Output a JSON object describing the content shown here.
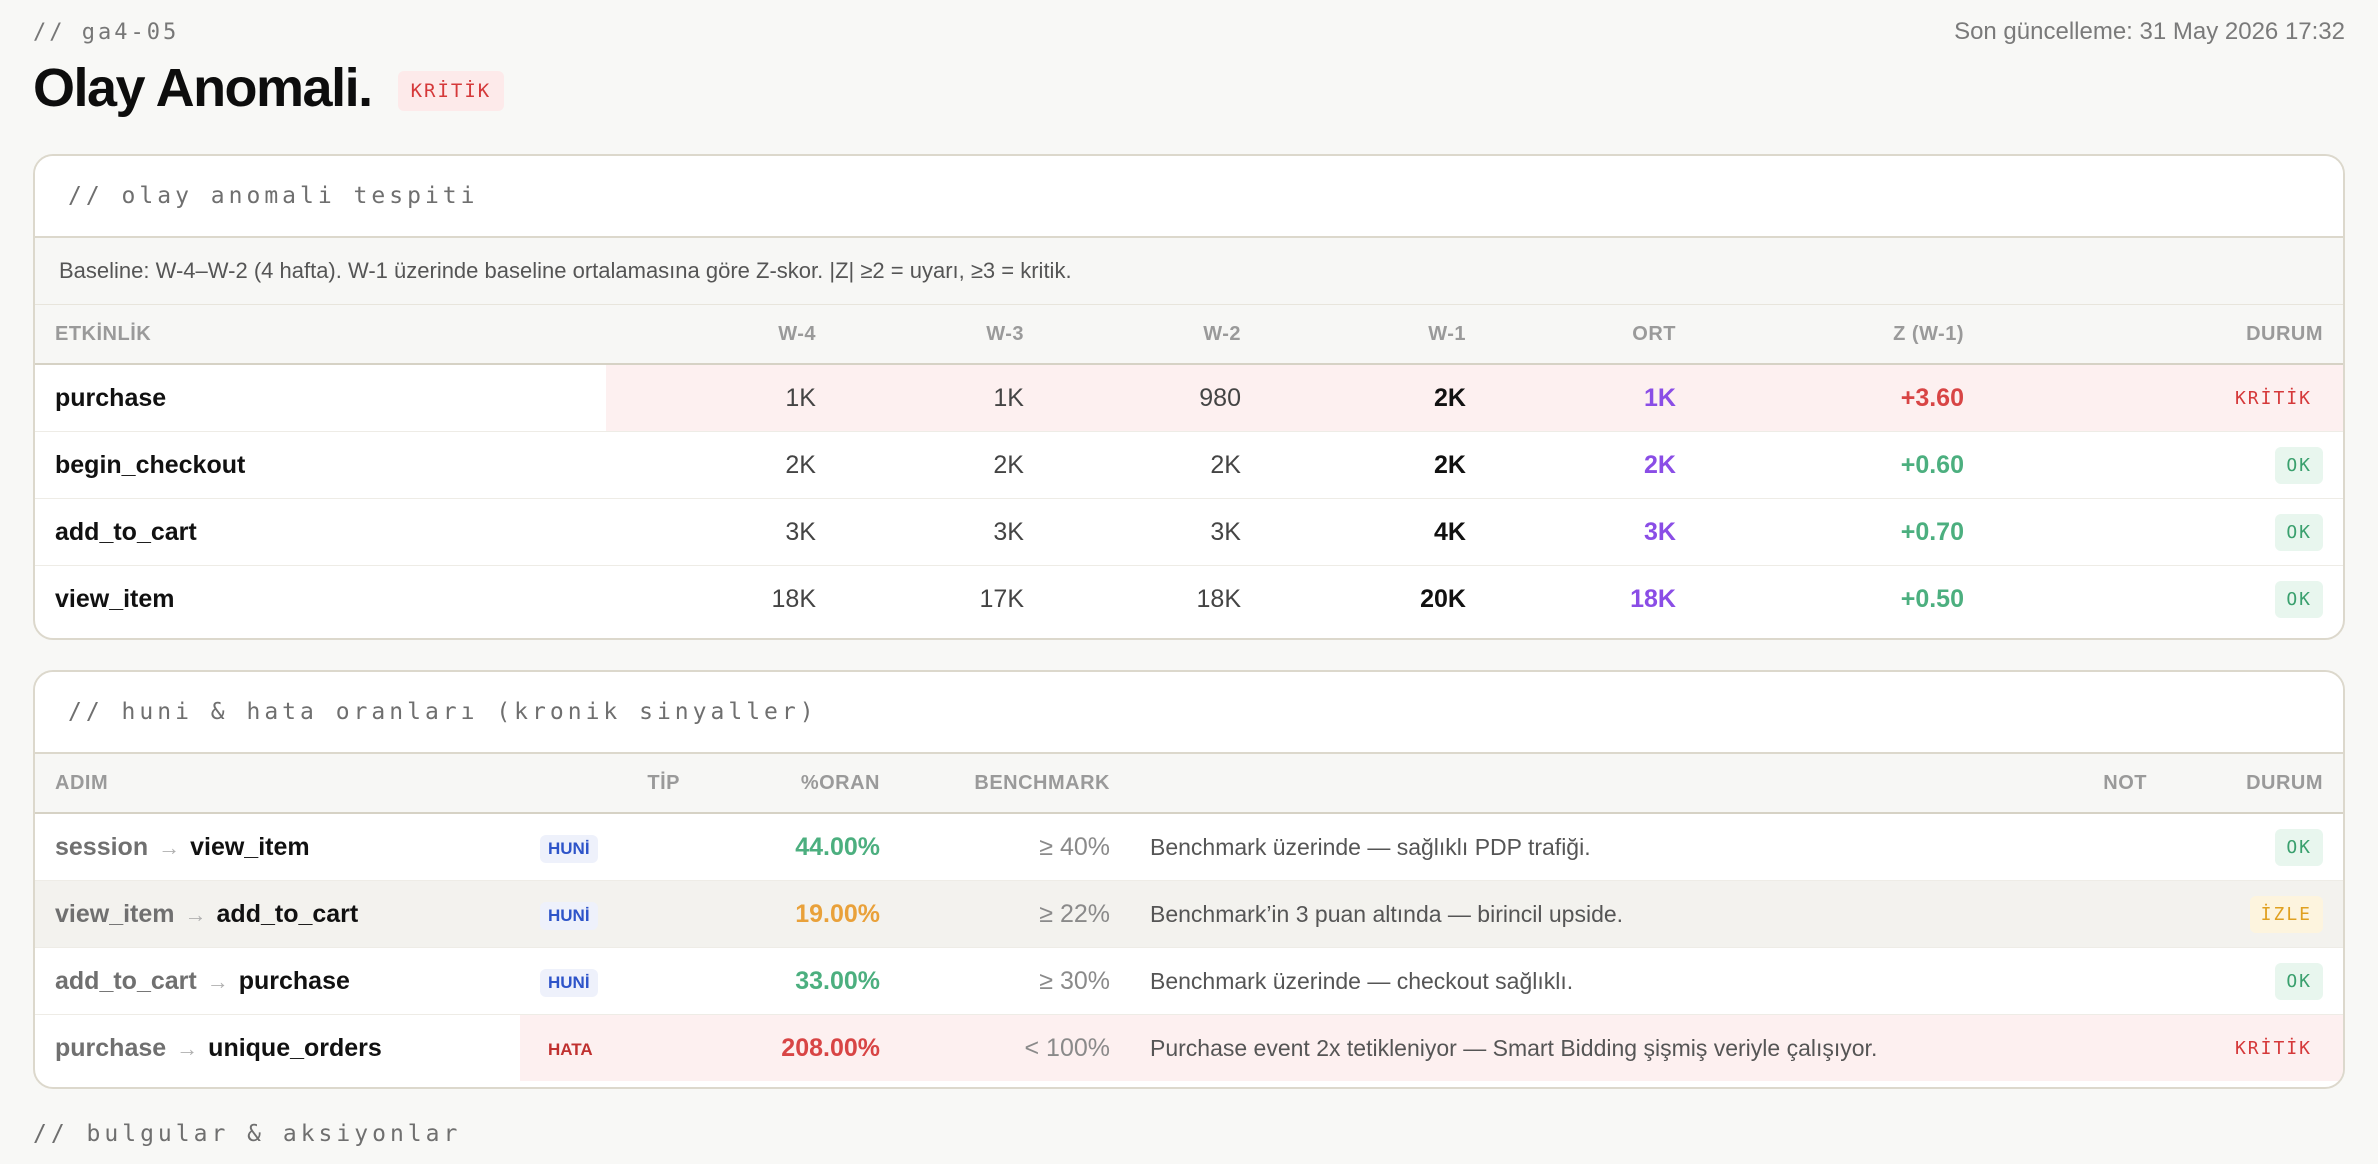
{
  "header": {
    "crumb": "// ga4-05",
    "updated": "Son güncelleme: 31 May 2026 17:32",
    "title": "Olay Anomali.",
    "badge": "KRİTİK"
  },
  "anomaly": {
    "section_title": "// olay anomali tespiti",
    "note": "Baseline: W-4–W-2 (4 hafta). W-1 üzerinde baseline ortalamasına göre Z-skor. |Z| ≥2 = uyarı, ≥3 = kritik.",
    "columns": [
      "ETKİNLİK",
      "W-4",
      "W-3",
      "W-2",
      "W-1",
      "ORT",
      "Z (W-1)",
      "DURUM"
    ],
    "rows": [
      {
        "event": "purchase",
        "w4": "1K",
        "w3": "1K",
        "w2": "980",
        "w1": "2K",
        "avg": "1K",
        "z": "+3.60",
        "status": "KRİTİK"
      },
      {
        "event": "begin_checkout",
        "w4": "2K",
        "w3": "2K",
        "w2": "2K",
        "w1": "2K",
        "avg": "2K",
        "z": "+0.60",
        "status": "OK"
      },
      {
        "event": "add_to_cart",
        "w4": "3K",
        "w3": "3K",
        "w2": "3K",
        "w1": "4K",
        "avg": "3K",
        "z": "+0.70",
        "status": "OK"
      },
      {
        "event": "view_item",
        "w4": "18K",
        "w3": "17K",
        "w2": "18K",
        "w1": "20K",
        "avg": "18K",
        "z": "+0.50",
        "status": "OK"
      }
    ]
  },
  "funnel": {
    "section_title": "// huni & hata oranları (kronik sinyaller)",
    "columns": [
      "ADIM",
      "TİP",
      "%ORAN",
      "BENCHMARK",
      "NOT",
      "DURUM"
    ],
    "rows": [
      {
        "from": "session",
        "to": "view_item",
        "type": "HUNİ",
        "rate": "44.00%",
        "bench": "≥ 40%",
        "note": "Benchmark üzerinde — sağlıklı PDP trafiği.",
        "status": "OK"
      },
      {
        "from": "view_item",
        "to": "add_to_cart",
        "type": "HUNİ",
        "rate": "19.00%",
        "bench": "≥ 22%",
        "note": "Benchmark’in 3 puan altında — birincil upside.",
        "status": "İZLE"
      },
      {
        "from": "add_to_cart",
        "to": "purchase",
        "type": "HUNİ",
        "rate": "33.00%",
        "bench": "≥ 30%",
        "note": "Benchmark üzerinde — checkout sağlıklı.",
        "status": "OK"
      },
      {
        "from": "purchase",
        "to": "unique_orders",
        "type": "HATA",
        "rate": "208.00%",
        "bench": "< 100%",
        "note": "Purchase event 2x tetikleniyor — Smart Bidding şişmiş veriyle çalışıyor.",
        "status": "KRİTİK"
      }
    ]
  },
  "footer": {
    "section_title": "// bulgular & aksiyonlar"
  },
  "colors": {
    "critical": "#d5393a",
    "ok": "#3aa06e",
    "watch": "#e0a020",
    "average": "#8a4de6",
    "funnel_tag": "#2e54c9"
  }
}
